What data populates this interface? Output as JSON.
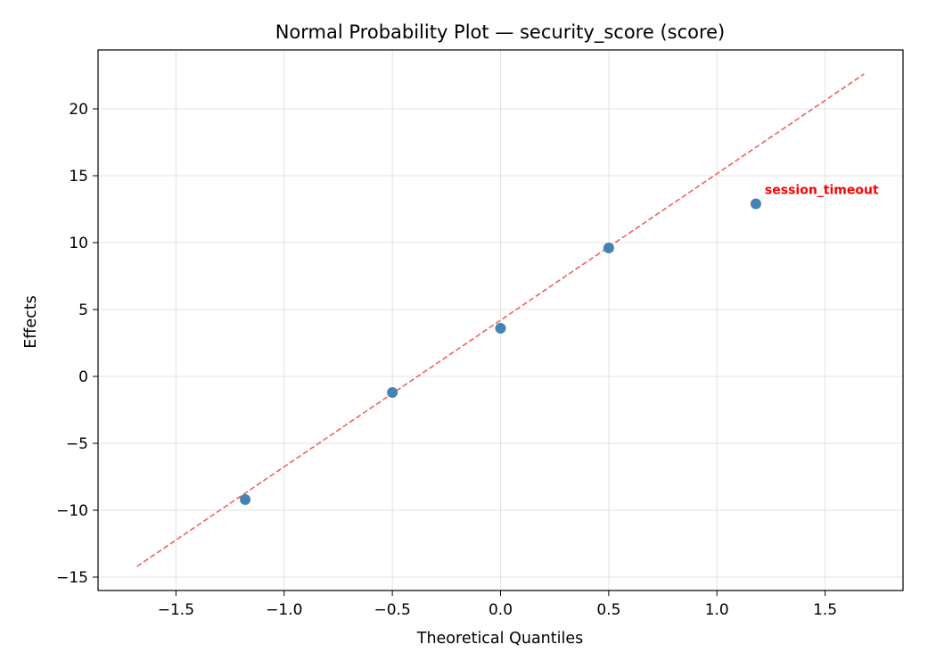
{
  "chart_data": {
    "type": "scatter",
    "title": "Normal Probability Plot — security_score (score)",
    "xlabel": "Theoretical Quantiles",
    "ylabel": "Effects",
    "xlim": [
      -1.86,
      1.86
    ],
    "ylim": [
      -16.0,
      24.4
    ],
    "grid": true,
    "x_ticks": [
      -1.5,
      -1.0,
      -0.5,
      0.0,
      0.5,
      1.0,
      1.5
    ],
    "x_tick_labels": [
      "−1.5",
      "−1.0",
      "−0.5",
      "0.0",
      "0.5",
      "1.0",
      "1.5"
    ],
    "y_ticks": [
      -15,
      -10,
      -5,
      0,
      5,
      10,
      15,
      20
    ],
    "y_tick_labels": [
      "−15",
      "−10",
      "−5",
      "0",
      "5",
      "10",
      "15",
      "20"
    ],
    "points": [
      {
        "x": -1.18,
        "y": -9.2
      },
      {
        "x": -0.5,
        "y": -1.2
      },
      {
        "x": 0.0,
        "y": 3.6
      },
      {
        "x": 0.5,
        "y": 9.6
      },
      {
        "x": 1.18,
        "y": 12.9
      }
    ],
    "point_color": "#4682b4",
    "reference_line": {
      "x": [
        -1.68,
        1.68
      ],
      "y": [
        -14.2,
        22.6
      ],
      "color": "#f0625f",
      "style": "dashed"
    },
    "annotations": [
      {
        "text": "session_timeout",
        "x": 1.18,
        "y": 12.9,
        "color": "#ff0000"
      }
    ]
  }
}
